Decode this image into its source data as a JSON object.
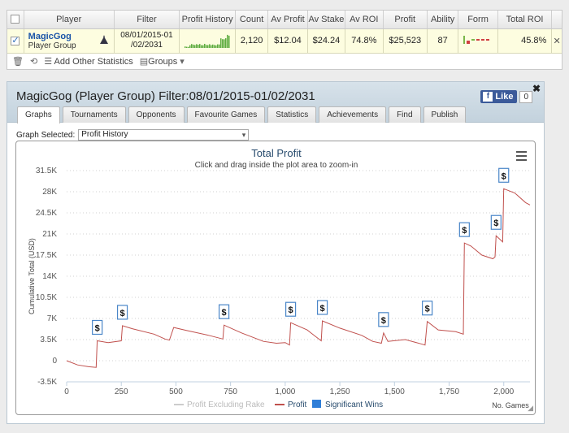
{
  "stats_table": {
    "headers": [
      "Player",
      "Filter",
      "Profit History",
      "Count",
      "Av Profit",
      "Av Stake",
      "Av ROI",
      "Profit",
      "Ability",
      "Form",
      "Total ROI"
    ],
    "row": {
      "player_name": "MagicGog",
      "player_sub": "Player Group",
      "filter": "08/01/2015-01 /02/2031",
      "count": "2,120",
      "av_profit": "$12.04",
      "av_stake": "$24.24",
      "av_roi": "74.8%",
      "profit": "$25,523",
      "ability": "87",
      "total_roi": "45.8%",
      "remove": "✕"
    },
    "toolbar": {
      "add_stats": "Add Other Statistics",
      "groups": "Groups"
    }
  },
  "panel": {
    "title": "MagicGog (Player Group) Filter:08/01/2015-01/02/2031",
    "close": "✖",
    "like_label": "Like",
    "like_count": "0",
    "tabs": [
      "Graphs",
      "Tournaments",
      "Opponents",
      "Favourite Games",
      "Statistics",
      "Achievements",
      "Find",
      "Publish"
    ],
    "graph_selected_label": "Graph Selected:",
    "graph_selected_value": "Profit History"
  },
  "chart_data": {
    "type": "line",
    "title": "Total Profit",
    "subtitle": "Click and drag inside the plot area to zoom-in",
    "ylabel": "Cumulative Total (USD)",
    "xlabel": "No. Games",
    "y_ticks": [
      "-3.5K",
      "0",
      "3.5K",
      "7K",
      "10.5K",
      "14K",
      "17.5K",
      "21K",
      "24.5K",
      "28K",
      "31.5K"
    ],
    "x_ticks": [
      "0",
      "250",
      "500",
      "750",
      "1,000",
      "1,250",
      "1,500",
      "1,750",
      "2,000"
    ],
    "ylim": [
      -3500,
      31500
    ],
    "xlim": [
      0,
      2120
    ],
    "legend": [
      "Profit Excluding Rake",
      "Profit",
      "Significant Wins"
    ],
    "series_color": "#c0504d",
    "profit_points": [
      [
        0,
        0
      ],
      [
        50,
        -700
      ],
      [
        100,
        -1000
      ],
      [
        135,
        -1100
      ],
      [
        140,
        3300
      ],
      [
        190,
        3000
      ],
      [
        250,
        3300
      ],
      [
        255,
        5800
      ],
      [
        300,
        5300
      ],
      [
        400,
        4400
      ],
      [
        450,
        3600
      ],
      [
        470,
        3400
      ],
      [
        490,
        5500
      ],
      [
        550,
        5000
      ],
      [
        650,
        4200
      ],
      [
        715,
        3600
      ],
      [
        720,
        5900
      ],
      [
        800,
        4600
      ],
      [
        900,
        3200
      ],
      [
        960,
        2900
      ],
      [
        1000,
        3000
      ],
      [
        1020,
        2600
      ],
      [
        1025,
        6300
      ],
      [
        1100,
        5100
      ],
      [
        1150,
        3700
      ],
      [
        1165,
        3300
      ],
      [
        1170,
        6600
      ],
      [
        1250,
        5400
      ],
      [
        1350,
        4200
      ],
      [
        1400,
        3200
      ],
      [
        1440,
        2900
      ],
      [
        1450,
        4600
      ],
      [
        1470,
        3200
      ],
      [
        1550,
        3500
      ],
      [
        1620,
        2800
      ],
      [
        1640,
        2600
      ],
      [
        1650,
        6500
      ],
      [
        1700,
        5100
      ],
      [
        1780,
        4800
      ],
      [
        1815,
        4400
      ],
      [
        1820,
        19500
      ],
      [
        1850,
        19000
      ],
      [
        1900,
        17500
      ],
      [
        1950,
        16900
      ],
      [
        1960,
        17200
      ],
      [
        1965,
        20700
      ],
      [
        1995,
        19700
      ],
      [
        2000,
        28500
      ],
      [
        2050,
        27800
      ],
      [
        2100,
        26200
      ],
      [
        2120,
        25800
      ]
    ],
    "significant_wins": [
      [
        140,
        3300
      ],
      [
        255,
        5800
      ],
      [
        720,
        5900
      ],
      [
        1025,
        6300
      ],
      [
        1170,
        6600
      ],
      [
        1450,
        4600
      ],
      [
        1650,
        6500
      ],
      [
        1820,
        19500
      ],
      [
        1965,
        20700
      ],
      [
        2000,
        28500
      ]
    ]
  }
}
